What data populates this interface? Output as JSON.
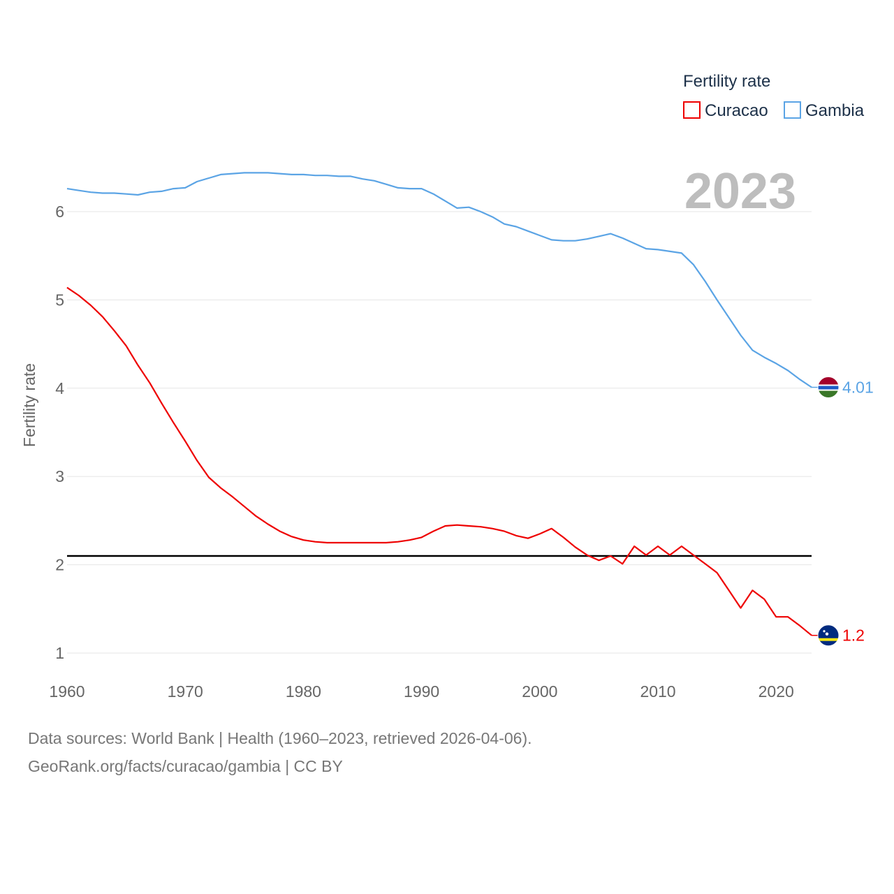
{
  "chart_data": {
    "type": "line",
    "year_label": "2023",
    "ylabel": "Fertility rate",
    "xlim": [
      1960,
      2023
    ],
    "ylim": [
      1,
      6.6
    ],
    "x_ticks": [
      "1960",
      "1970",
      "1980",
      "1990",
      "2000",
      "2010",
      "2020"
    ],
    "y_ticks": [
      "1",
      "2",
      "3",
      "4",
      "5",
      "6"
    ],
    "reference_line": 2.1,
    "legend": {
      "title": "Fertility rate",
      "placement": "top-right"
    },
    "series": [
      {
        "name": "Curacao",
        "color": "#ee0000",
        "end_label": "1.2",
        "flag_icon": "curacao-flag-icon",
        "x": [
          1960,
          1961,
          1962,
          1963,
          1964,
          1965,
          1966,
          1967,
          1968,
          1969,
          1970,
          1971,
          1972,
          1973,
          1974,
          1975,
          1976,
          1977,
          1978,
          1979,
          1980,
          1981,
          1982,
          1983,
          1984,
          1985,
          1986,
          1987,
          1988,
          1989,
          1990,
          1991,
          1992,
          1993,
          1994,
          1995,
          1996,
          1997,
          1998,
          1999,
          2000,
          2001,
          2002,
          2003,
          2004,
          2005,
          2006,
          2007,
          2008,
          2009,
          2010,
          2011,
          2012,
          2013,
          2014,
          2015,
          2016,
          2017,
          2018,
          2019,
          2020,
          2021,
          2022,
          2023
        ],
        "values": [
          5.14,
          5.05,
          4.94,
          4.81,
          4.65,
          4.48,
          4.26,
          4.06,
          3.83,
          3.61,
          3.4,
          3.18,
          2.99,
          2.87,
          2.77,
          2.66,
          2.55,
          2.46,
          2.38,
          2.32,
          2.28,
          2.26,
          2.25,
          2.25,
          2.25,
          2.25,
          2.25,
          2.25,
          2.26,
          2.28,
          2.31,
          2.38,
          2.44,
          2.45,
          2.44,
          2.43,
          2.41,
          2.38,
          2.33,
          2.3,
          2.35,
          2.41,
          2.31,
          2.2,
          2.11,
          2.05,
          2.1,
          2.01,
          2.21,
          2.11,
          2.21,
          2.11,
          2.21,
          2.11,
          2.01,
          1.91,
          1.71,
          1.51,
          1.71,
          1.61,
          1.41,
          1.41,
          1.31,
          1.2
        ]
      },
      {
        "name": "Gambia",
        "color": "#5ba4e5",
        "end_label": "4.01",
        "flag_icon": "gambia-flag-icon",
        "x": [
          1960,
          1961,
          1962,
          1963,
          1964,
          1965,
          1966,
          1967,
          1968,
          1969,
          1970,
          1971,
          1972,
          1973,
          1974,
          1975,
          1976,
          1977,
          1978,
          1979,
          1980,
          1981,
          1982,
          1983,
          1984,
          1985,
          1986,
          1987,
          1988,
          1989,
          1990,
          1991,
          1992,
          1993,
          1994,
          1995,
          1996,
          1997,
          1998,
          1999,
          2000,
          2001,
          2002,
          2003,
          2004,
          2005,
          2006,
          2007,
          2008,
          2009,
          2010,
          2011,
          2012,
          2013,
          2014,
          2015,
          2016,
          2017,
          2018,
          2019,
          2020,
          2021,
          2022,
          2023
        ],
        "values": [
          6.26,
          6.24,
          6.22,
          6.21,
          6.21,
          6.2,
          6.19,
          6.22,
          6.23,
          6.26,
          6.27,
          6.34,
          6.38,
          6.42,
          6.43,
          6.44,
          6.44,
          6.44,
          6.43,
          6.42,
          6.42,
          6.41,
          6.41,
          6.4,
          6.4,
          6.37,
          6.35,
          6.31,
          6.27,
          6.26,
          6.26,
          6.2,
          6.12,
          6.04,
          6.05,
          6.0,
          5.94,
          5.86,
          5.83,
          5.78,
          5.73,
          5.68,
          5.67,
          5.67,
          5.69,
          5.72,
          5.75,
          5.7,
          5.64,
          5.58,
          5.57,
          5.55,
          5.53,
          5.4,
          5.21,
          5.0,
          4.8,
          4.6,
          4.43,
          4.35,
          4.28,
          4.2,
          4.1,
          4.01
        ]
      }
    ]
  },
  "footer": {
    "sources": "Data sources: World Bank | Health (1960–2023, retrieved 2026-04-06).",
    "credit": "GeoRank.org/facts/curacao/gambia | CC BY"
  }
}
